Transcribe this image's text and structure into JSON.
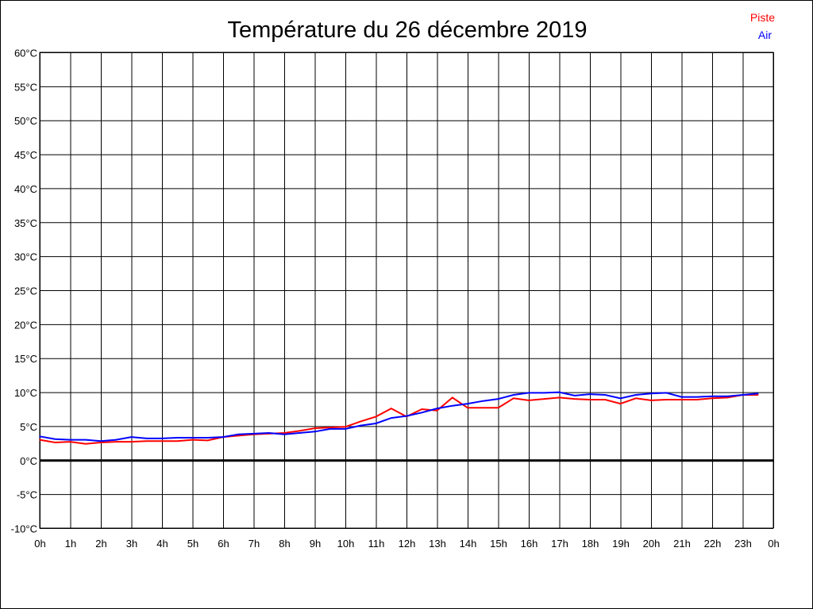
{
  "chart_data": {
    "type": "line",
    "title": "Température du 26 décembre 2019",
    "legend_placement": "top-right",
    "grid": true,
    "ylim": [
      -10,
      60
    ],
    "y_ticks": [
      "60°C",
      "55°C",
      "50°C",
      "45°C",
      "40°C",
      "35°C",
      "30°C",
      "25°C",
      "20°C",
      "15°C",
      "10°C",
      "5°C",
      "0°C",
      "-5°C",
      "-10°C"
    ],
    "x_ticks": [
      "0h",
      "1h",
      "2h",
      "3h",
      "4h",
      "5h",
      "6h",
      "7h",
      "8h",
      "9h",
      "10h",
      "11h",
      "12h",
      "13h",
      "14h",
      "15h",
      "16h",
      "17h",
      "18h",
      "19h",
      "20h",
      "21h",
      "22h",
      "23h",
      "0h"
    ],
    "xlim": [
      0,
      24
    ],
    "x": [
      0,
      0.5,
      1,
      1.5,
      2,
      2.5,
      3,
      3.5,
      4,
      4.5,
      5,
      5.5,
      6,
      6.5,
      7,
      7.5,
      8,
      8.5,
      9,
      9.5,
      10,
      10.5,
      11,
      11.5,
      12,
      12.5,
      13,
      13.5,
      14,
      14.5,
      15,
      15.5,
      16,
      16.5,
      17,
      17.5,
      18,
      18.5,
      19,
      19.5,
      20,
      20.5,
      21,
      21.5,
      22,
      22.5,
      23,
      23.5
    ],
    "series": [
      {
        "name": "Piste",
        "color": "#ff0000",
        "values": [
          3.0,
          2.6,
          2.7,
          2.4,
          2.6,
          2.7,
          2.7,
          2.8,
          2.8,
          2.8,
          3.0,
          2.9,
          3.4,
          3.6,
          3.8,
          3.9,
          4.0,
          4.3,
          4.7,
          4.8,
          4.9,
          5.7,
          6.4,
          7.6,
          6.4,
          7.5,
          7.3,
          9.2,
          7.7,
          7.7,
          7.7,
          9.1,
          8.8,
          9.0,
          9.2,
          9.0,
          8.9,
          8.9,
          8.3,
          9.1,
          8.8,
          8.9,
          8.9,
          8.9,
          9.1,
          9.2,
          9.6,
          9.6
        ]
      },
      {
        "name": "Air",
        "color": "#0000ff",
        "values": [
          3.5,
          3.1,
          3.0,
          3.0,
          2.8,
          3.0,
          3.4,
          3.2,
          3.2,
          3.3,
          3.3,
          3.3,
          3.4,
          3.8,
          3.9,
          4.0,
          3.8,
          4.0,
          4.2,
          4.6,
          4.6,
          5.1,
          5.4,
          6.2,
          6.5,
          7.0,
          7.6,
          8.0,
          8.3,
          8.7,
          9.0,
          9.6,
          9.9,
          9.9,
          10.0,
          9.5,
          9.7,
          9.6,
          9.1,
          9.6,
          9.8,
          9.9,
          9.3,
          9.3,
          9.4,
          9.4,
          9.6,
          9.8
        ]
      }
    ]
  }
}
